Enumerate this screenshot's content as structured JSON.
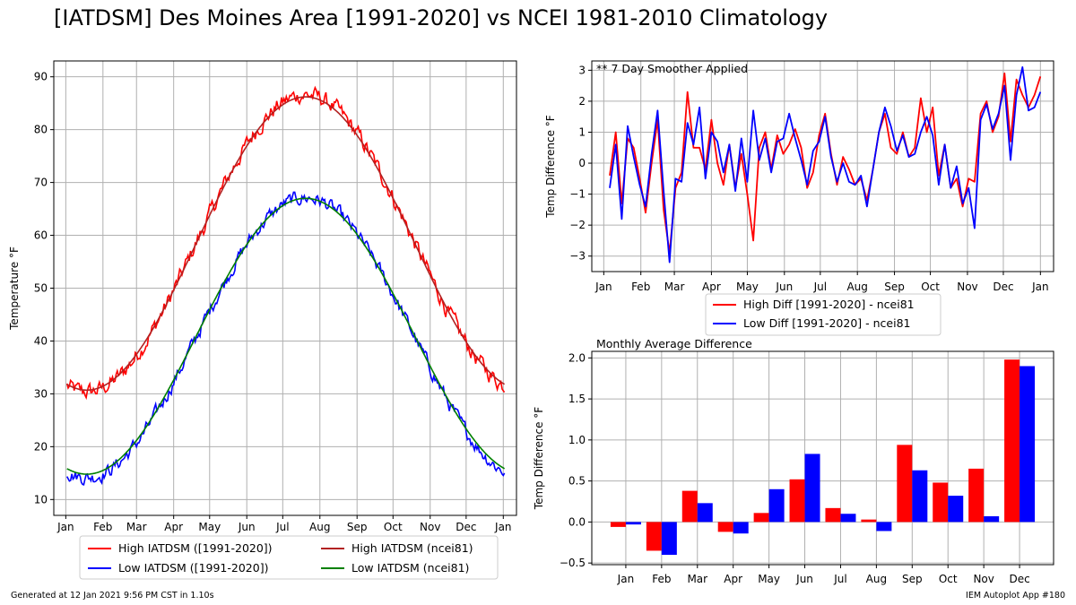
{
  "header": {
    "title": "[IATDSM] Des Moines Area [1991-2020] vs NCEI 1981-2010 Climatology"
  },
  "footer": {
    "generated": "Generated at 12 Jan 2021 9:56 PM CST in 1.10s",
    "app": "IEM Autoplot App #180"
  },
  "months": [
    "Jan",
    "Feb",
    "Mar",
    "Apr",
    "May",
    "Jun",
    "Jul",
    "Aug",
    "Sep",
    "Oct",
    "Nov",
    "Dec",
    "Jan"
  ],
  "colors": {
    "high_obs": "#ff0000",
    "low_obs": "#0000ff",
    "high_ncei": "#b22222",
    "low_ncei": "#008000",
    "grid": "#b0b0b0"
  },
  "chart_data": [
    {
      "type": "line",
      "ylabel": "Temperature °F",
      "ylim": [
        7,
        93
      ],
      "yticks": [
        10,
        20,
        30,
        40,
        50,
        60,
        70,
        80,
        90
      ],
      "grid": true,
      "legend_position": "bottom",
      "x_unit": "day of year",
      "series": [
        {
          "name": "High IATDSM ([1991-2020])",
          "key": "high_obs",
          "peak_day": 200,
          "min": 30.4,
          "max": 86.6,
          "noise": 1.3
        },
        {
          "name": "Low IATDSM ([1991-2020])",
          "key": "low_obs",
          "peak_day": 200,
          "min": 14.2,
          "max": 67.1,
          "noise": 1.1
        },
        {
          "name": "High IATDSM (ncei81)",
          "key": "high_ncei",
          "peak_day": 200,
          "min": 30.7,
          "max": 86.2,
          "noise": 0
        },
        {
          "name": "Low IATDSM (ncei81)",
          "key": "low_ncei",
          "peak_day": 200,
          "min": 14.8,
          "max": 67.0,
          "noise": 0
        }
      ]
    },
    {
      "type": "line",
      "annotation": "** 7 Day Smoother Applied",
      "ylabel": "Temp Difference °F",
      "ylim": [
        -3.5,
        3.3
      ],
      "yticks": [
        -3,
        -2,
        -1,
        0,
        1,
        2,
        3
      ],
      "grid": true,
      "legend_position": "bottom",
      "series": [
        {
          "name": "High Diff [1991-2020] - ncei81",
          "key": "high_obs",
          "x": [
            5,
            10,
            15,
            20,
            25,
            30,
            35,
            40,
            45,
            50,
            55,
            60,
            65,
            70,
            75,
            80,
            85,
            90,
            95,
            100,
            105,
            110,
            115,
            120,
            125,
            130,
            135,
            140,
            145,
            150,
            155,
            160,
            165,
            170,
            175,
            180,
            185,
            190,
            195,
            200,
            205,
            210,
            215,
            220,
            225,
            230,
            235,
            240,
            245,
            250,
            255,
            260,
            265,
            270,
            275,
            280,
            285,
            290,
            295,
            300,
            305,
            310,
            315,
            320,
            325,
            330,
            335,
            340,
            345,
            350,
            355,
            360,
            365
          ],
          "values": [
            -0.4,
            1.0,
            -1.3,
            0.8,
            0.5,
            -0.5,
            -1.6,
            0.0,
            1.4,
            -1.5,
            -2.9,
            -0.8,
            -0.3,
            2.3,
            0.5,
            0.5,
            -0.2,
            1.4,
            0.0,
            -0.7,
            0.6,
            -0.8,
            0.3,
            -1.0,
            -2.5,
            0.5,
            1.0,
            -0.2,
            0.9,
            0.3,
            0.6,
            1.1,
            0.5,
            -0.8,
            -0.3,
            0.9,
            1.6,
            0.3,
            -0.7,
            0.2,
            -0.2,
            -0.7,
            -0.5,
            -1.2,
            -0.2,
            1.0,
            1.6,
            0.5,
            0.3,
            1.0,
            0.2,
            0.5,
            2.1,
            1.0,
            1.8,
            -0.4,
            0.6,
            -0.8,
            -0.5,
            -1.4,
            -0.5,
            -0.6,
            1.6,
            2.0,
            1.0,
            1.5,
            2.9,
            0.7,
            2.7,
            2.2,
            1.8,
            2.2,
            2.8
          ]
        },
        {
          "name": "Low Diff [1991-2020] - ncei81",
          "key": "low_obs",
          "x": [
            5,
            10,
            15,
            20,
            25,
            30,
            35,
            40,
            45,
            50,
            55,
            60,
            65,
            70,
            75,
            80,
            85,
            90,
            95,
            100,
            105,
            110,
            115,
            120,
            125,
            130,
            135,
            140,
            145,
            150,
            155,
            160,
            165,
            170,
            175,
            180,
            185,
            190,
            195,
            200,
            205,
            210,
            215,
            220,
            225,
            230,
            235,
            240,
            245,
            250,
            255,
            260,
            265,
            270,
            275,
            280,
            285,
            290,
            295,
            300,
            305,
            310,
            315,
            320,
            325,
            330,
            335,
            340,
            345,
            350,
            355,
            360,
            365
          ],
          "values": [
            -0.8,
            0.6,
            -1.8,
            1.2,
            0.2,
            -0.7,
            -1.4,
            0.3,
            1.7,
            -0.9,
            -3.2,
            -0.5,
            -0.6,
            1.3,
            0.6,
            1.8,
            -0.5,
            1.0,
            0.7,
            -0.3,
            0.6,
            -0.9,
            0.8,
            -0.6,
            1.7,
            0.1,
            0.8,
            -0.3,
            0.7,
            0.8,
            1.6,
            0.8,
            0.1,
            -0.7,
            0.4,
            0.7,
            1.5,
            0.2,
            -0.6,
            0.0,
            -0.6,
            -0.7,
            -0.4,
            -1.4,
            -0.2,
            1.0,
            1.8,
            1.2,
            0.4,
            0.9,
            0.2,
            0.3,
            1.0,
            1.5,
            0.9,
            -0.7,
            0.6,
            -0.8,
            -0.1,
            -1.3,
            -0.8,
            -2.1,
            1.4,
            1.9,
            1.1,
            1.6,
            2.5,
            0.1,
            2.2,
            3.1,
            1.7,
            1.8,
            2.3
          ]
        }
      ]
    },
    {
      "type": "bar",
      "title": "Monthly Average Difference",
      "ylabel": "Temp Difference °F",
      "ylim": [
        -0.52,
        2.08
      ],
      "yticks": [
        -0.5,
        0.0,
        0.5,
        1.0,
        1.5,
        2.0
      ],
      "grid": true,
      "categories": [
        "Jan",
        "Feb",
        "Mar",
        "Apr",
        "May",
        "Jun",
        "Jul",
        "Aug",
        "Sep",
        "Oct",
        "Nov",
        "Dec"
      ],
      "series": [
        {
          "key": "high_obs",
          "values": [
            -0.06,
            -0.35,
            0.38,
            -0.12,
            0.11,
            0.52,
            0.17,
            0.03,
            0.94,
            0.48,
            0.65,
            1.98
          ]
        },
        {
          "key": "low_obs",
          "values": [
            -0.03,
            -0.4,
            0.23,
            -0.14,
            0.4,
            0.83,
            0.1,
            -0.11,
            0.63,
            0.32,
            0.07,
            1.9
          ]
        }
      ]
    }
  ]
}
